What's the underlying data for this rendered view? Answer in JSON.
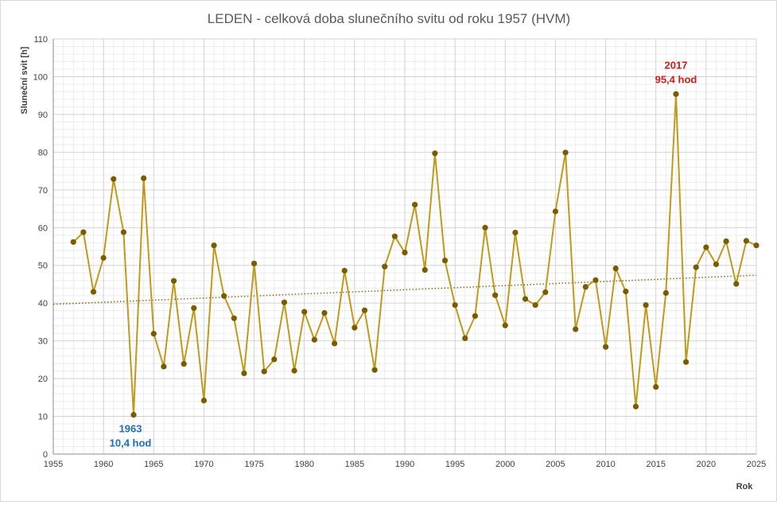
{
  "chart_data": {
    "type": "line",
    "title": "LEDEN - celková doba slunečního svitu od roku 1957 (HVM)",
    "xlabel": "Rok",
    "ylabel": "Sluneční svit [h]",
    "xlim": [
      1955,
      2025
    ],
    "ylim": [
      0,
      110
    ],
    "x_ticks": [
      1955,
      1960,
      1965,
      1970,
      1975,
      1980,
      1985,
      1990,
      1995,
      2000,
      2005,
      2010,
      2015,
      2020,
      2025
    ],
    "y_ticks": [
      0,
      10,
      20,
      30,
      40,
      50,
      60,
      70,
      80,
      90,
      100,
      110
    ],
    "grid": true,
    "x": [
      1957,
      1958,
      1959,
      1960,
      1961,
      1962,
      1963,
      1964,
      1965,
      1966,
      1967,
      1968,
      1969,
      1970,
      1971,
      1972,
      1973,
      1974,
      1975,
      1976,
      1977,
      1978,
      1979,
      1980,
      1981,
      1982,
      1983,
      1984,
      1985,
      1986,
      1987,
      1988,
      1989,
      1990,
      1991,
      1992,
      1993,
      1994,
      1995,
      1996,
      1997,
      1998,
      1999,
      2000,
      2001,
      2002,
      2003,
      2004,
      2005,
      2006,
      2007,
      2008,
      2009,
      2010,
      2011,
      2012,
      2013,
      2014,
      2015,
      2016,
      2017,
      2018,
      2019,
      2020,
      2021,
      2022,
      2023,
      2024,
      2025
    ],
    "series": [
      {
        "values": [
          56.2,
          58.8,
          43,
          52,
          72.9,
          58.8,
          10.4,
          73.1,
          31.9,
          23.2,
          45.9,
          23.9,
          38.7,
          14.2,
          55.3,
          41.9,
          36,
          21.4,
          50.5,
          21.9,
          25.1,
          40.2,
          22.1,
          37.7,
          30.3,
          37.4,
          29.3,
          48.6,
          33.5,
          38.1,
          22.3,
          49.7,
          57.7,
          53.4,
          66.1,
          48.8,
          79.7,
          51.3,
          39.5,
          30.7,
          36.6,
          60,
          42.1,
          34.1,
          58.7,
          41.1,
          39.5,
          42.9,
          64.3,
          79.9,
          33.1,
          44.3,
          46.1,
          28.4,
          49.2,
          43.1,
          12.6,
          39.5,
          17.8,
          42.7,
          95.4,
          24.4,
          49.5,
          54.8,
          50.3,
          56.4,
          45.1,
          56.5,
          55.3
        ],
        "color": "#c09a1c",
        "marker_color": "#7a5c00"
      }
    ],
    "trendline": {
      "style": "dotted",
      "color": "#8a6a10",
      "start": [
        1955,
        39.7
      ],
      "end": [
        2025,
        47.4
      ]
    },
    "annotations": {
      "max_year": "2017",
      "max_value": "95,4 hod",
      "max_color": "#d31a1a",
      "min_year": "1963",
      "min_value": "10,4 hod",
      "min_color": "#1f6fb0"
    }
  }
}
